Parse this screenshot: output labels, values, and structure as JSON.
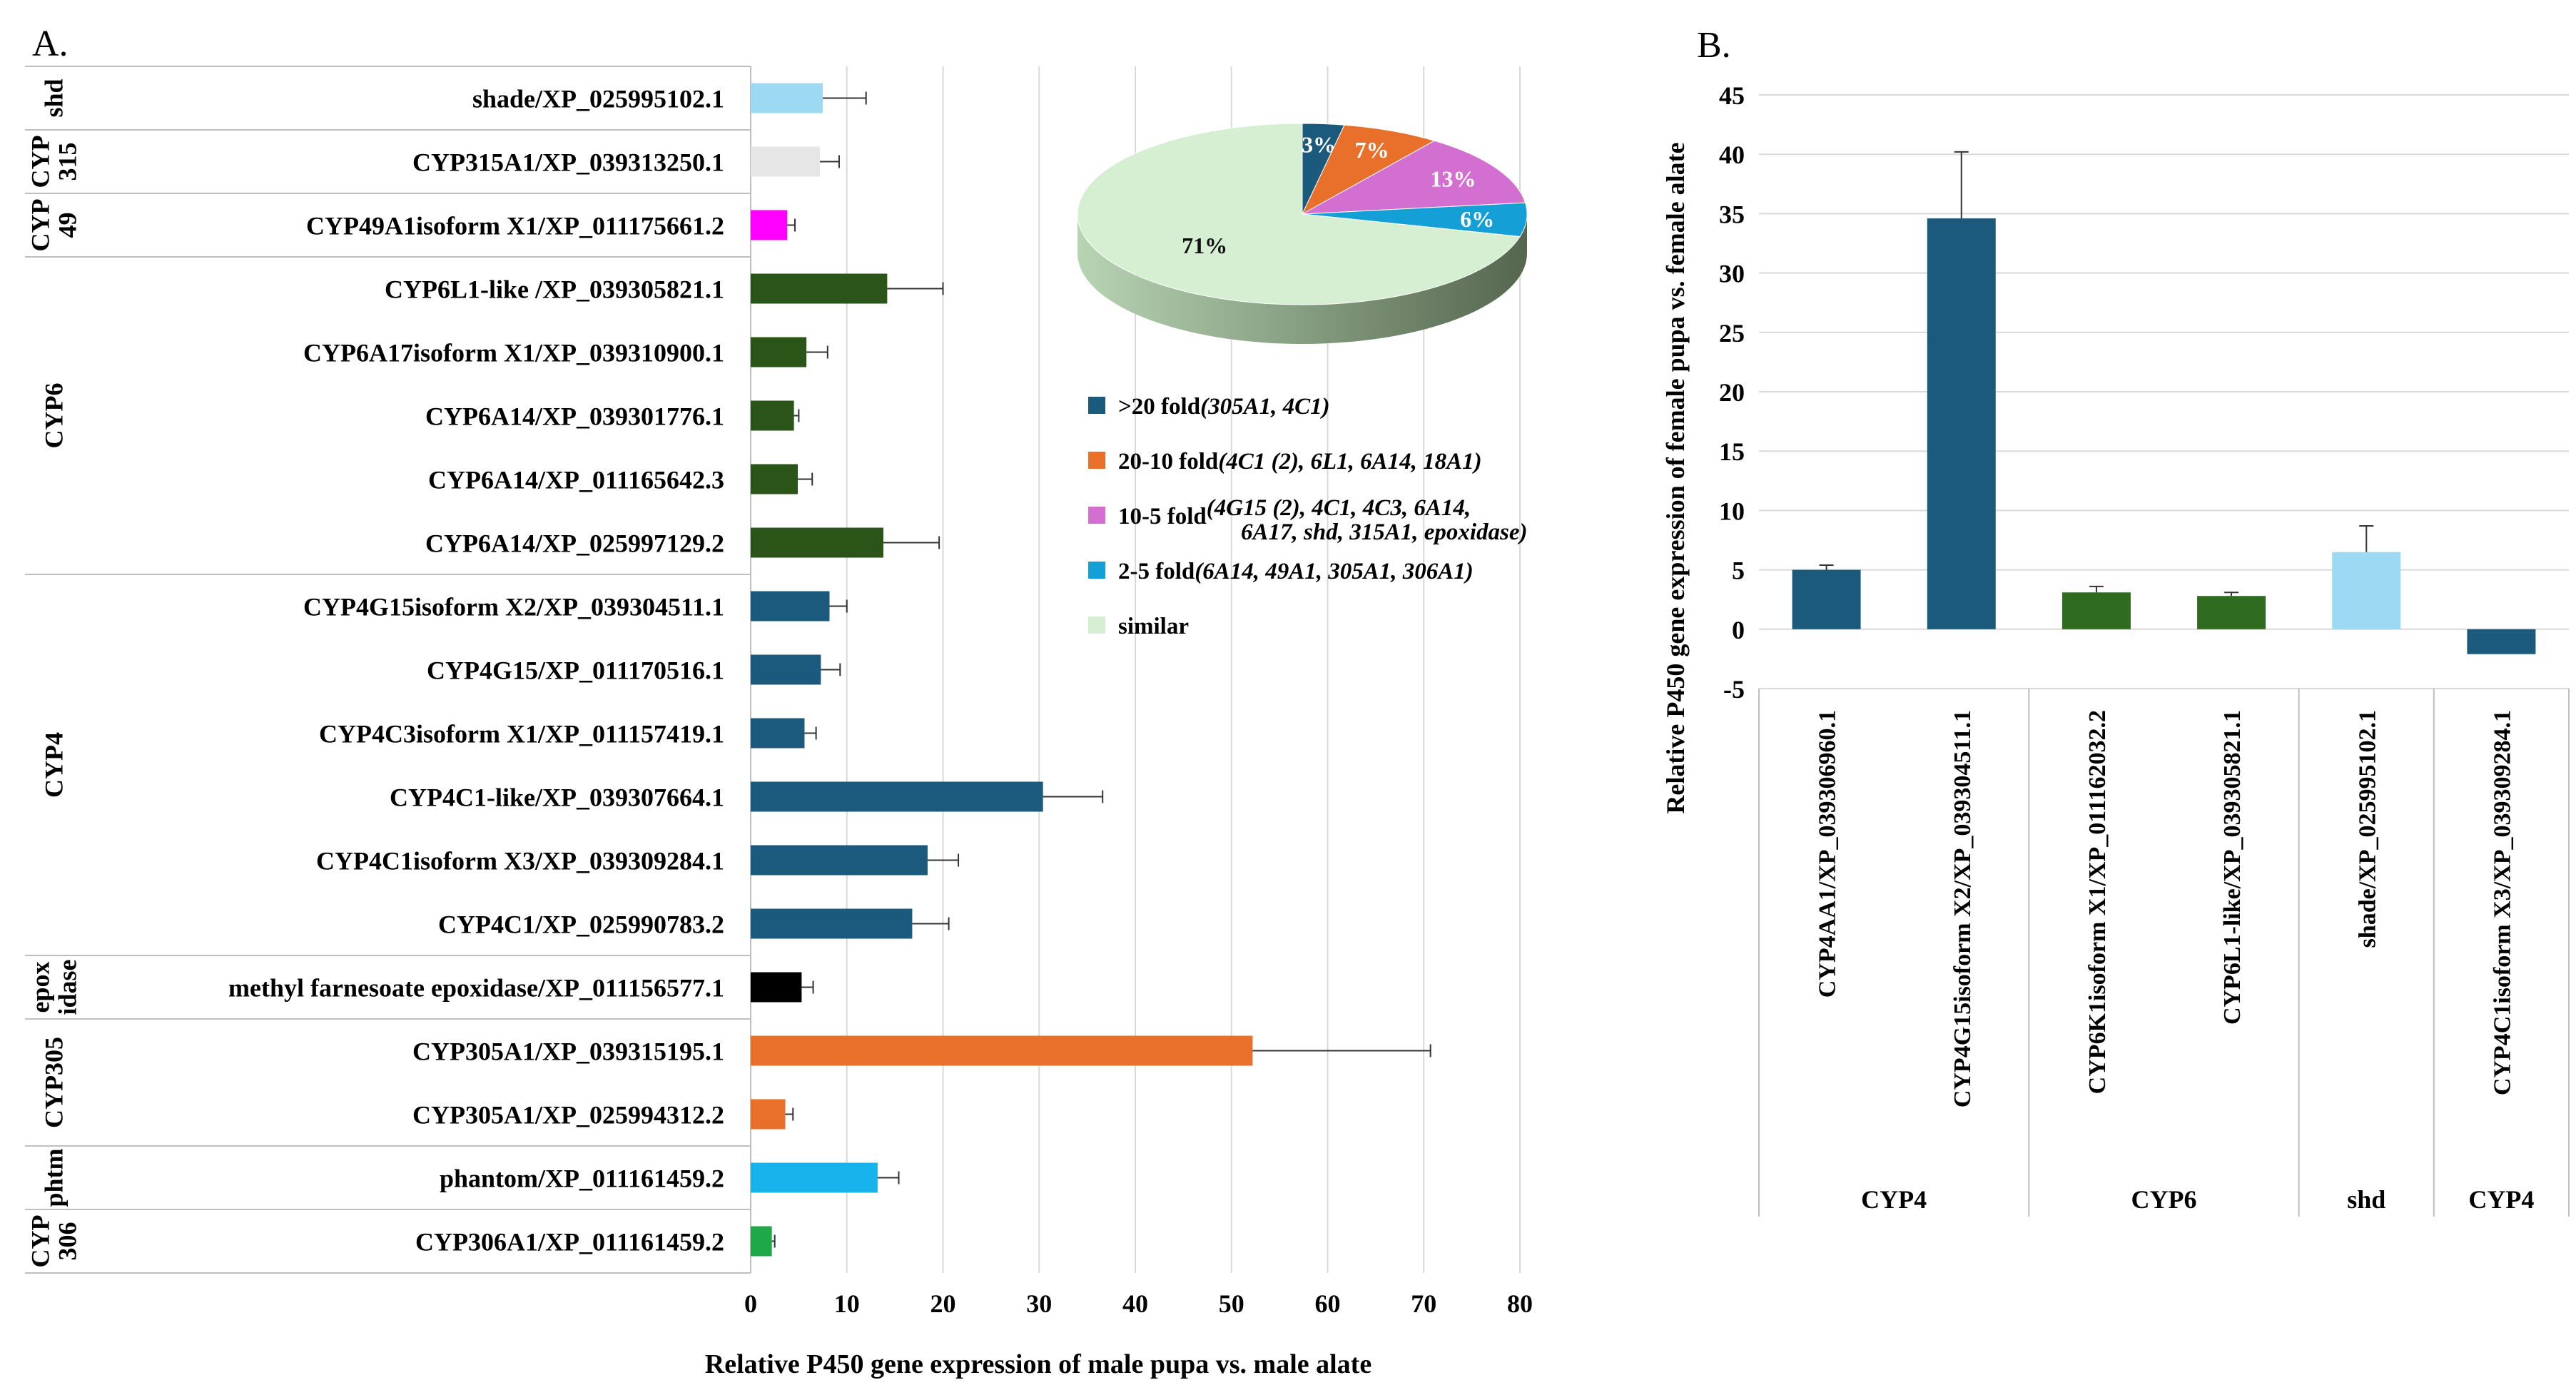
{
  "chart_data": [
    {
      "panel_label": "A.",
      "type": "bar",
      "orientation": "horizontal",
      "xlabel": "Relative P450 gene expression of male pupa vs. male alate",
      "xlim": [
        0,
        80
      ],
      "xticks": [
        "0",
        "10",
        "20",
        "30",
        "40",
        "50",
        "60",
        "70",
        "80"
      ],
      "groups": [
        {
          "label": "shd",
          "count": 1
        },
        {
          "label": "CYP\n315",
          "count": 1
        },
        {
          "label": "CYP\n49",
          "count": 1
        },
        {
          "label": "CYP6",
          "count": 5
        },
        {
          "label": "CYP4",
          "count": 6
        },
        {
          "label": "epox\nidase",
          "count": 1
        },
        {
          "label": "CYP305",
          "count": 2
        },
        {
          "label": "phtm",
          "count": 1
        },
        {
          "label": "CYP\n306",
          "count": 1
        }
      ],
      "bars": [
        {
          "label": "shade/XP_025995102.1",
          "value": 7.5,
          "error": 4.5,
          "color": "#9dd9f3"
        },
        {
          "label": "CYP315A1/XP_039313250.1",
          "value": 7.2,
          "error": 2.0,
          "color": "#e6e6e6"
        },
        {
          "label": "CYP49A1isoform X1/XP_011175661.2",
          "value": 3.8,
          "error": 0.8,
          "color": "#ff00ff"
        },
        {
          "label": "CYP6L1-like /XP_039305821.1",
          "value": 14.2,
          "error": 5.8,
          "color": "#2b5419"
        },
        {
          "label": "CYP6A17isoform X1/XP_039310900.1",
          "value": 5.8,
          "error": 2.2,
          "color": "#2b5419"
        },
        {
          "label": "CYP6A14/XP_039301776.1",
          "value": 4.5,
          "error": 0.5,
          "color": "#2b5419"
        },
        {
          "label": "CYP6A14/XP_011165642.3",
          "value": 4.9,
          "error": 1.5,
          "color": "#2b5419"
        },
        {
          "label": "CYP6A14/XP_025997129.2",
          "value": 13.8,
          "error": 5.8,
          "color": "#2b5419"
        },
        {
          "label": "CYP4G15isoform X2/XP_039304511.1",
          "value": 8.2,
          "error": 1.8,
          "color": "#1b5a7d"
        },
        {
          "label": "CYP4G15/XP_011170516.1",
          "value": 7.3,
          "error": 2.0,
          "color": "#1b5a7d"
        },
        {
          "label": "CYP4C3isoform X1/XP_011157419.1",
          "value": 5.6,
          "error": 1.2,
          "color": "#1b5a7d"
        },
        {
          "label": "CYP4C1-like/XP_039307664.1",
          "value": 30.4,
          "error": 6.2,
          "color": "#1b5a7d"
        },
        {
          "label": "CYP4C1isoform X3/XP_039309284.1",
          "value": 18.4,
          "error": 3.2,
          "color": "#1b5a7d"
        },
        {
          "label": "CYP4C1/XP_025990783.2",
          "value": 16.8,
          "error": 3.8,
          "color": "#1b5a7d"
        },
        {
          "label": "methyl farnesoate epoxidase/XP_011156577.1",
          "value": 5.3,
          "error": 1.2,
          "color": "#000000"
        },
        {
          "label": "CYP305A1/XP_039315195.1",
          "value": 52.2,
          "error": 18.5,
          "color": "#e8702a"
        },
        {
          "label": "CYP305A1/XP_025994312.2",
          "value": 3.6,
          "error": 0.8,
          "color": "#e8702a"
        },
        {
          "label": "phantom/XP_011161459.2",
          "value": 13.2,
          "error": 2.2,
          "color": "#17b3ec"
        },
        {
          "label": "CYP306A1/XP_011161459.2",
          "value": 2.2,
          "error": 0.3,
          "color": "#1fa84a"
        }
      ]
    },
    {
      "type": "pie",
      "style": "3d",
      "slices": [
        {
          "label": "3%",
          "value": 3,
          "color": "#1b5a7d"
        },
        {
          "label": "7%",
          "value": 7,
          "color": "#e8702a"
        },
        {
          "label": "13%",
          "value": 13,
          "color": "#d36fd0"
        },
        {
          "label": "6%",
          "value": 6,
          "color": "#14a0d6"
        },
        {
          "label": "71%",
          "value": 71,
          "color": "#d6efd3"
        }
      ],
      "legend": [
        {
          "prefix": ">20 fold",
          "detail": "(305A1, 4C1)",
          "color": "#1b5a7d"
        },
        {
          "prefix": "20-10 fold",
          "detail": "(4C1 (2), 6L1, 6A14, 18A1)",
          "color": "#e8702a"
        },
        {
          "prefix": "10-5 fold",
          "detail": "(4G15 (2), 4C1, 4C3, 6A14,",
          "detail2": "6A17, shd, 315A1, epoxidase)",
          "color": "#d36fd0"
        },
        {
          "prefix": "2-5 fold",
          "detail": "(6A14, 49A1, 305A1, 306A1)",
          "color": "#14a0d6"
        },
        {
          "prefix": "similar",
          "detail": "",
          "color": "#d6efd3"
        }
      ]
    },
    {
      "panel_label": "B.",
      "type": "bar",
      "orientation": "vertical",
      "ylabel": "Relative P450 gene expression of female pupa vs. female alate",
      "ylim": [
        -5,
        45
      ],
      "yticks": [
        "-5",
        "0",
        "5",
        "10",
        "15",
        "20",
        "25",
        "30",
        "35",
        "40",
        "45"
      ],
      "bars": [
        {
          "label": "CYP4AA1/XP_039306960.1",
          "value": 5.0,
          "error": 0.4,
          "color": "#1b5a7d"
        },
        {
          "label": "CYP4G15isoform X2/XP_039304511.1",
          "value": 34.6,
          "error": 5.6,
          "color": "#1b5a7d"
        },
        {
          "label": "CYP6K1isoform X1/XP_011162032.2",
          "value": 3.1,
          "error": 0.5,
          "color": "#2e6b1f"
        },
        {
          "label": "CYP6L1-like/XP_039305821.1",
          "value": 2.8,
          "error": 0.3,
          "color": "#2e6b1f"
        },
        {
          "label": "shade/XP_025995102.1",
          "value": 6.5,
          "error": 2.2,
          "color": "#9dd9f3"
        },
        {
          "label": "CYP4C1isoform X3/XP_039309284.1",
          "value": -2.1,
          "error": 0.1,
          "color": "#1b5a7d"
        }
      ],
      "groups": [
        {
          "label": "CYP4",
          "count": 2
        },
        {
          "label": "CYP6",
          "count": 2
        },
        {
          "label": "shd",
          "count": 1
        },
        {
          "label": "CYP4",
          "count": 1
        }
      ]
    }
  ]
}
